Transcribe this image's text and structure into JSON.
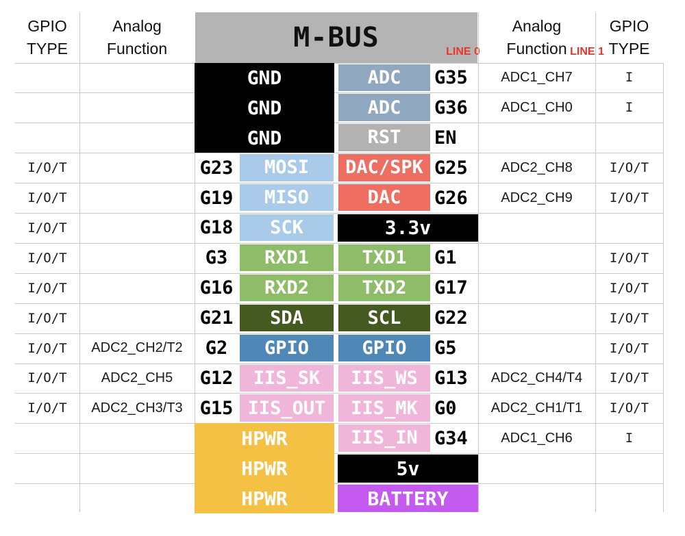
{
  "diagram": {
    "title": "M-BUS",
    "line0": "LINE 0",
    "line1": "LINE 1"
  },
  "column_headers": {
    "left_gpio_type": [
      "GPIO",
      "TYPE"
    ],
    "left_analog": [
      "Analog",
      "Function"
    ],
    "right_analog": [
      "Analog",
      "Function"
    ],
    "right_gpio_type": [
      "GPIO",
      "TYPE"
    ]
  },
  "colors": {
    "mbus_header_gray": "#b4b4b4",
    "line_label_red": "#e8362b",
    "grid_line": "#c9c9c9",
    "pin_colors": {
      "gnd": "#000000",
      "pwr": "#000000",
      "adc": "#90a7c0",
      "rst": "#b2b2b2",
      "spi": "#a9cbe9",
      "dac": "#ee6e61",
      "uart": "#8ebc68",
      "i2c": "#455a20",
      "gpio": "#4f88b7",
      "iis": "#f0b6da",
      "hpwr": "#f4c145",
      "battery": "#c55af0"
    }
  },
  "rows": [
    {
      "gpio_type_l": "",
      "analog_l": "",
      "g_l": "",
      "pin_l": "GND",
      "color_l": "gnd",
      "merge_l": true,
      "pin_r": "ADC",
      "color_r": "adc",
      "span_r": false,
      "g_r": "G35",
      "analog_r": "ADC1_CH7",
      "gpio_type_r": "I"
    },
    {
      "gpio_type_l": "",
      "analog_l": "",
      "g_l": "",
      "pin_l": "GND",
      "color_l": "gnd",
      "merge_l": true,
      "pin_r": "ADC",
      "color_r": "adc",
      "span_r": false,
      "g_r": "G36",
      "analog_r": "ADC1_CH0",
      "gpio_type_r": "I"
    },
    {
      "gpio_type_l": "",
      "analog_l": "",
      "g_l": "",
      "pin_l": "GND",
      "color_l": "gnd",
      "merge_l": true,
      "pin_r": "RST",
      "color_r": "rst",
      "span_r": false,
      "g_r": "EN",
      "analog_r": "",
      "gpio_type_r": ""
    },
    {
      "gpio_type_l": "I/O/T",
      "analog_l": "",
      "g_l": "G23",
      "pin_l": "MOSI",
      "color_l": "spi",
      "merge_l": false,
      "pin_r": "DAC/SPK",
      "color_r": "dac",
      "span_r": false,
      "g_r": "G25",
      "analog_r": "ADC2_CH8",
      "gpio_type_r": "I/O/T"
    },
    {
      "gpio_type_l": "I/O/T",
      "analog_l": "",
      "g_l": "G19",
      "pin_l": "MISO",
      "color_l": "spi",
      "merge_l": false,
      "pin_r": "DAC",
      "color_r": "dac",
      "span_r": false,
      "g_r": "G26",
      "analog_r": "ADC2_CH9",
      "gpio_type_r": "I/O/T"
    },
    {
      "gpio_type_l": "I/O/T",
      "analog_l": "",
      "g_l": "G18",
      "pin_l": "SCK",
      "color_l": "spi",
      "merge_l": false,
      "pin_r": "3.3v",
      "color_r": "pwr",
      "span_r": true,
      "g_r": "",
      "analog_r": "",
      "gpio_type_r": ""
    },
    {
      "gpio_type_l": "I/O/T",
      "analog_l": "",
      "g_l": "G3",
      "pin_l": "RXD1",
      "color_l": "uart",
      "merge_l": false,
      "pin_r": "TXD1",
      "color_r": "uart",
      "span_r": false,
      "g_r": "G1",
      "analog_r": "",
      "gpio_type_r": "I/O/T"
    },
    {
      "gpio_type_l": "I/O/T",
      "analog_l": "",
      "g_l": "G16",
      "pin_l": "RXD2",
      "color_l": "uart",
      "merge_l": false,
      "pin_r": "TXD2",
      "color_r": "uart",
      "span_r": false,
      "g_r": "G17",
      "analog_r": "",
      "gpio_type_r": "I/O/T"
    },
    {
      "gpio_type_l": "I/O/T",
      "analog_l": "",
      "g_l": "G21",
      "pin_l": "SDA",
      "color_l": "i2c",
      "merge_l": false,
      "pin_r": "SCL",
      "color_r": "i2c",
      "span_r": false,
      "g_r": "G22",
      "analog_r": "",
      "gpio_type_r": "I/O/T"
    },
    {
      "gpio_type_l": "I/O/T",
      "analog_l": "ADC2_CH2/T2",
      "g_l": "G2",
      "pin_l": "GPIO",
      "color_l": "gpio",
      "merge_l": false,
      "pin_r": "GPIO",
      "color_r": "gpio",
      "span_r": false,
      "g_r": "G5",
      "analog_r": "",
      "gpio_type_r": "I/O/T"
    },
    {
      "gpio_type_l": "I/O/T",
      "analog_l": "ADC2_CH5",
      "g_l": "G12",
      "pin_l": "IIS_SK",
      "color_l": "iis",
      "merge_l": false,
      "pin_r": "IIS_WS",
      "color_r": "iis",
      "span_r": false,
      "g_r": "G13",
      "analog_r": "ADC2_CH4/T4",
      "gpio_type_r": "I/O/T"
    },
    {
      "gpio_type_l": "I/O/T",
      "analog_l": "ADC2_CH3/T3",
      "g_l": "G15",
      "pin_l": "IIS_OUT",
      "color_l": "iis",
      "merge_l": false,
      "pin_r": "IIS_MK",
      "color_r": "iis",
      "span_r": false,
      "g_r": "G0",
      "analog_r": "ADC2_CH1/T1",
      "gpio_type_r": "I/O/T"
    },
    {
      "gpio_type_l": "",
      "analog_l": "",
      "g_l": "",
      "pin_l": "HPWR",
      "color_l": "hpwr",
      "merge_l": true,
      "pin_r": "IIS_IN",
      "color_r": "iis",
      "span_r": false,
      "g_r": "G34",
      "analog_r": "ADC1_CH6",
      "gpio_type_r": "I"
    },
    {
      "gpio_type_l": "",
      "analog_l": "",
      "g_l": "",
      "pin_l": "HPWR",
      "color_l": "hpwr",
      "merge_l": true,
      "pin_r": "5v",
      "color_r": "pwr",
      "span_r": true,
      "g_r": "",
      "analog_r": "",
      "gpio_type_r": ""
    },
    {
      "gpio_type_l": "",
      "analog_l": "",
      "g_l": "",
      "pin_l": "HPWR",
      "color_l": "hpwr",
      "merge_l": true,
      "pin_r": "BATTERY",
      "color_r": "battery",
      "span_r": true,
      "g_r": "",
      "analog_r": "",
      "gpio_type_r": ""
    }
  ]
}
